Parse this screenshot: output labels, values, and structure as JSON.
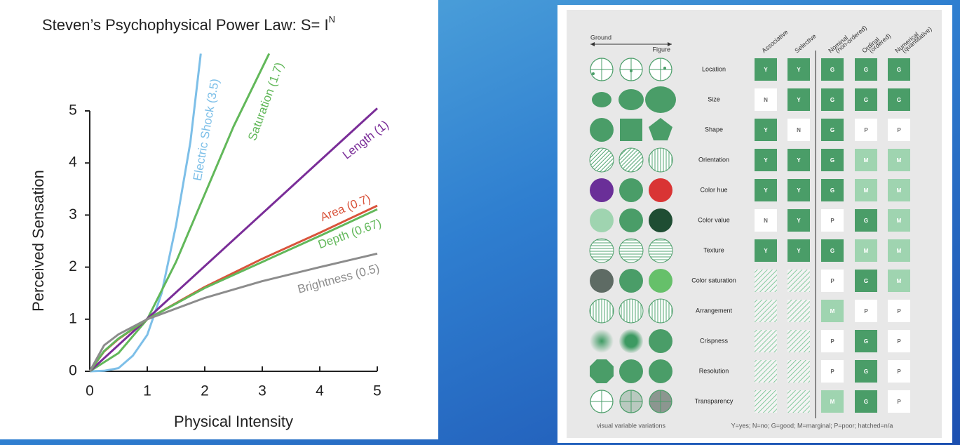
{
  "chart_data": {
    "type": "line",
    "title": "Steven’s Psychophysical Power Law: S= I",
    "title_superscript": "N",
    "x_label": "Physical Intensity",
    "y_label": "Perceived Sensation",
    "xlim": [
      0,
      5
    ],
    "ylim": [
      0,
      5
    ],
    "xticks": [
      0,
      1,
      2,
      3,
      4,
      5
    ],
    "yticks": [
      0,
      1,
      2,
      3,
      4,
      5
    ],
    "series": [
      {
        "name": "Electric Shock (3.5)",
        "color": "#7dbfe8",
        "x": [
          0,
          0.25,
          0.5,
          0.75,
          1,
          1.25,
          1.5,
          1.75,
          1.93
        ],
        "values": [
          0,
          0.01,
          0.06,
          0.3,
          0.7,
          1.5,
          2.8,
          4.4,
          6.1
        ]
      },
      {
        "name": "Saturation (1.7)",
        "color": "#62b85a",
        "x": [
          0,
          0.5,
          1,
          1.5,
          2,
          2.5,
          3.12
        ],
        "values": [
          0,
          0.35,
          1,
          2.1,
          3.4,
          4.7,
          6.1
        ]
      },
      {
        "name": "Length (1)",
        "color": "#7a2d98",
        "x": [
          0,
          5
        ],
        "values": [
          0,
          5.05
        ]
      },
      {
        "name": "Area (0.7)",
        "color": "#d9543c",
        "x": [
          0,
          0.25,
          0.5,
          1,
          2,
          3,
          4,
          5
        ],
        "values": [
          0,
          0.38,
          0.62,
          1,
          1.62,
          2.16,
          2.66,
          3.18
        ]
      },
      {
        "name": "Depth (0.67)",
        "color": "#62b85a",
        "x": [
          0,
          0.25,
          0.5,
          1,
          2,
          3,
          4,
          5
        ],
        "values": [
          0,
          0.39,
          0.63,
          1,
          1.6,
          2.1,
          2.6,
          3.11
        ]
      },
      {
        "name": "Brightness (0.5)",
        "color": "#8c8c8c",
        "x": [
          0,
          0.25,
          0.5,
          1,
          2,
          3,
          4,
          5
        ],
        "values": [
          0,
          0.5,
          0.71,
          1,
          1.41,
          1.73,
          2.0,
          2.26
        ]
      }
    ]
  },
  "table": {
    "ground": "Ground",
    "figure": "Figure",
    "columns": [
      [
        "Associative"
      ],
      [
        "Selective"
      ],
      [
        "Nominal",
        "(non-ordered)"
      ],
      [
        "Ordinal",
        "(ordered)"
      ],
      [
        "Numerical",
        "(quantitative)"
      ]
    ],
    "rows": [
      {
        "label": "Location",
        "cells": [
          "Y",
          "Y",
          "G",
          "G",
          "G"
        ]
      },
      {
        "label": "Size",
        "cells": [
          "N",
          "Y",
          "G",
          "G",
          "G"
        ]
      },
      {
        "label": "Shape",
        "cells": [
          "Y",
          "N",
          "G",
          "P",
          "P"
        ]
      },
      {
        "label": "Orientation",
        "cells": [
          "Y",
          "Y",
          "G",
          "M",
          "M"
        ]
      },
      {
        "label": "Color hue",
        "cells": [
          "Y",
          "Y",
          "G",
          "M",
          "M"
        ]
      },
      {
        "label": "Color value",
        "cells": [
          "N",
          "Y",
          "P",
          "G",
          "M"
        ]
      },
      {
        "label": "Texture",
        "cells": [
          "Y",
          "Y",
          "G",
          "M",
          "M"
        ]
      },
      {
        "label": "Color saturation",
        "cells": [
          null,
          null,
          "P",
          "G",
          "M"
        ]
      },
      {
        "label": "Arrangement",
        "cells": [
          null,
          null,
          "M",
          "P",
          "P"
        ]
      },
      {
        "label": "Crispness",
        "cells": [
          null,
          null,
          "P",
          "G",
          "P"
        ]
      },
      {
        "label": "Resolution",
        "cells": [
          null,
          null,
          "P",
          "G",
          "P"
        ]
      },
      {
        "label": "Transparency",
        "cells": [
          null,
          null,
          "M",
          "G",
          "P"
        ]
      }
    ],
    "footer_left": "visual variable variations",
    "footer_right": "Y=yes; N=no; G=good; M=marginal; P=poor; hatched=n/a"
  }
}
